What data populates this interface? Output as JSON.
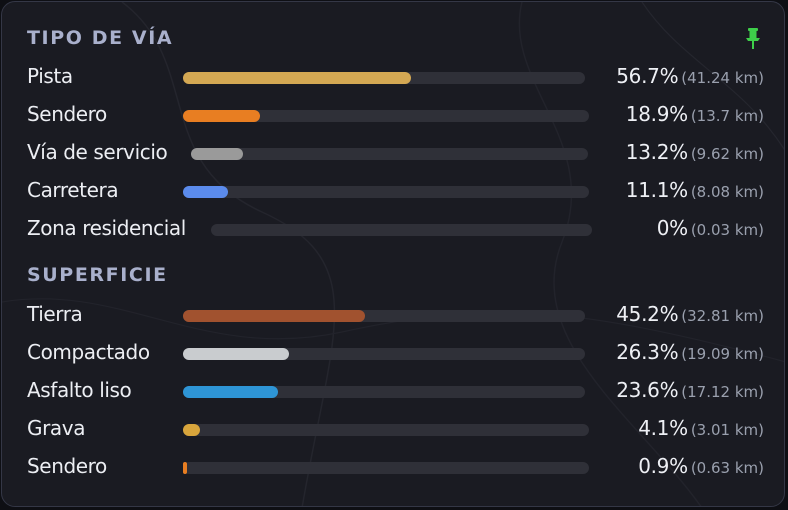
{
  "colors": {
    "pin": "#3ecf4a"
  },
  "sections": [
    {
      "title": "TIPO DE VÍA",
      "rows": [
        {
          "label": "Pista",
          "pct": "56.7%",
          "km": "(41.24 km)",
          "fraction": 0.567,
          "color": "#d4a853"
        },
        {
          "label": "Sendero",
          "pct": "18.9%",
          "km": "(13.7 km)",
          "fraction": 0.189,
          "color": "#e87e22"
        },
        {
          "label": "Vía de servicio",
          "pct": "13.2%",
          "km": "(9.62 km)",
          "fraction": 0.132,
          "color": "#9a9a9a"
        },
        {
          "label": "Carretera",
          "pct": "11.1%",
          "km": "(8.08 km)",
          "fraction": 0.111,
          "color": "#5b8bec"
        },
        {
          "label": "Zona residencial",
          "pct": "0%",
          "km": "(0.03 km)",
          "fraction": 0.0,
          "color": "#7a7a7a"
        }
      ]
    },
    {
      "title": "SUPERFICIE",
      "rows": [
        {
          "label": "Tierra",
          "pct": "45.2%",
          "km": "(32.81 km)",
          "fraction": 0.452,
          "color": "#a1522f"
        },
        {
          "label": "Compactado",
          "pct": "26.3%",
          "km": "(19.09 km)",
          "fraction": 0.263,
          "color": "#c9cccf"
        },
        {
          "label": "Asfalto liso",
          "pct": "23.6%",
          "km": "(17.12 km)",
          "fraction": 0.236,
          "color": "#2e95d6"
        },
        {
          "label": "Grava",
          "pct": "4.1%",
          "km": "(3.01 km)",
          "fraction": 0.041,
          "color": "#d8a53c"
        },
        {
          "label": "Sendero",
          "pct": "0.9%",
          "km": "(0.63 km)",
          "fraction": 0.009,
          "color": "#e87e22"
        }
      ]
    }
  ]
}
